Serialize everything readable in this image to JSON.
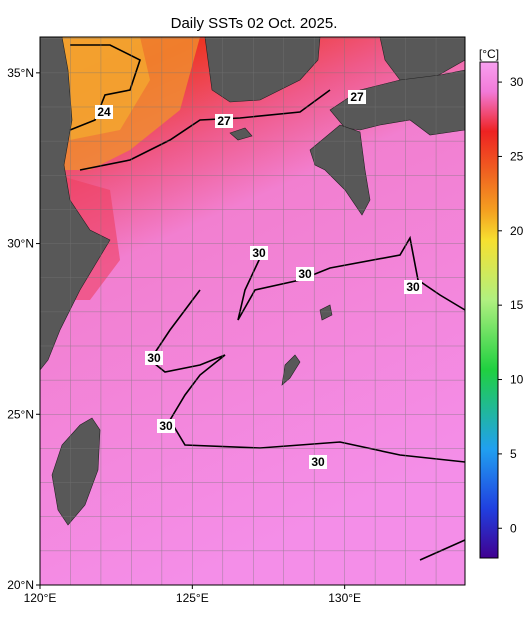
{
  "title": "Daily SSTs 02 Oct. 2025.",
  "map": {
    "lon_range": [
      120,
      133.95
    ],
    "lat_range": [
      20,
      36.05
    ],
    "lat_labels": [
      {
        "value": 35,
        "label": "35°N"
      },
      {
        "value": 30,
        "label": "30°N"
      },
      {
        "value": 25,
        "label": "25°N"
      },
      {
        "value": 20,
        "label": "20°N"
      }
    ],
    "lon_labels": [
      {
        "value": 120,
        "label": "120°E"
      },
      {
        "value": 125,
        "label": "125°E"
      },
      {
        "value": 130,
        "label": "130°E"
      }
    ]
  },
  "colorbar": {
    "unit": "[°C]",
    "range": [
      -2,
      31.35
    ],
    "ticks": [
      30,
      25,
      20,
      15,
      10,
      5,
      0
    ]
  },
  "contour_labels": [
    "24",
    "27",
    "27",
    "30",
    "30",
    "30",
    "30",
    "30",
    "30"
  ]
}
